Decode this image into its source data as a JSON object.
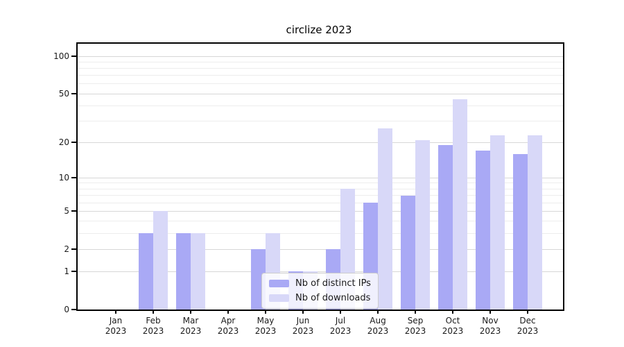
{
  "title": "circlize 2023",
  "colors": {
    "distinct_ips_bar": "#a9a9f5",
    "downloads_bar": "#d8d8f8",
    "grid_major": "#d7d7d7",
    "grid_minor": "#ededed",
    "axis": "#000000"
  },
  "legend": {
    "items": [
      "Nb of distinct IPs",
      "Nb of downloads"
    ]
  },
  "chart_data": {
    "type": "bar",
    "title": "circlize 2023",
    "categories": [
      "Jan 2023",
      "Feb 2023",
      "Mar 2023",
      "Apr 2023",
      "May 2023",
      "Jun 2023",
      "Jul 2023",
      "Aug 2023",
      "Sep 2023",
      "Oct 2023",
      "Nov 2023",
      "Dec 2023"
    ],
    "series": [
      {
        "name": "Nb of distinct IPs",
        "color": "#a9a9f5",
        "values": [
          0,
          3,
          3,
          0,
          2,
          1,
          2,
          6,
          7,
          19,
          17,
          16
        ]
      },
      {
        "name": "Nb of downloads",
        "color": "#d8d8f8",
        "values": [
          0,
          5,
          3,
          0,
          3,
          1,
          8,
          26,
          21,
          45,
          23,
          23
        ]
      }
    ],
    "xlabel": "",
    "ylabel": "",
    "yscale": "log1p",
    "ylim": [
      0,
      126
    ],
    "y_major_ticks": [
      0,
      1,
      2,
      5,
      10,
      20,
      50,
      100
    ],
    "y_minor_gridlines": [
      3,
      4,
      6,
      7,
      8,
      9,
      30,
      40,
      60,
      70,
      80,
      90
    ],
    "grid": true,
    "legend_position": "lower-center-inside"
  }
}
